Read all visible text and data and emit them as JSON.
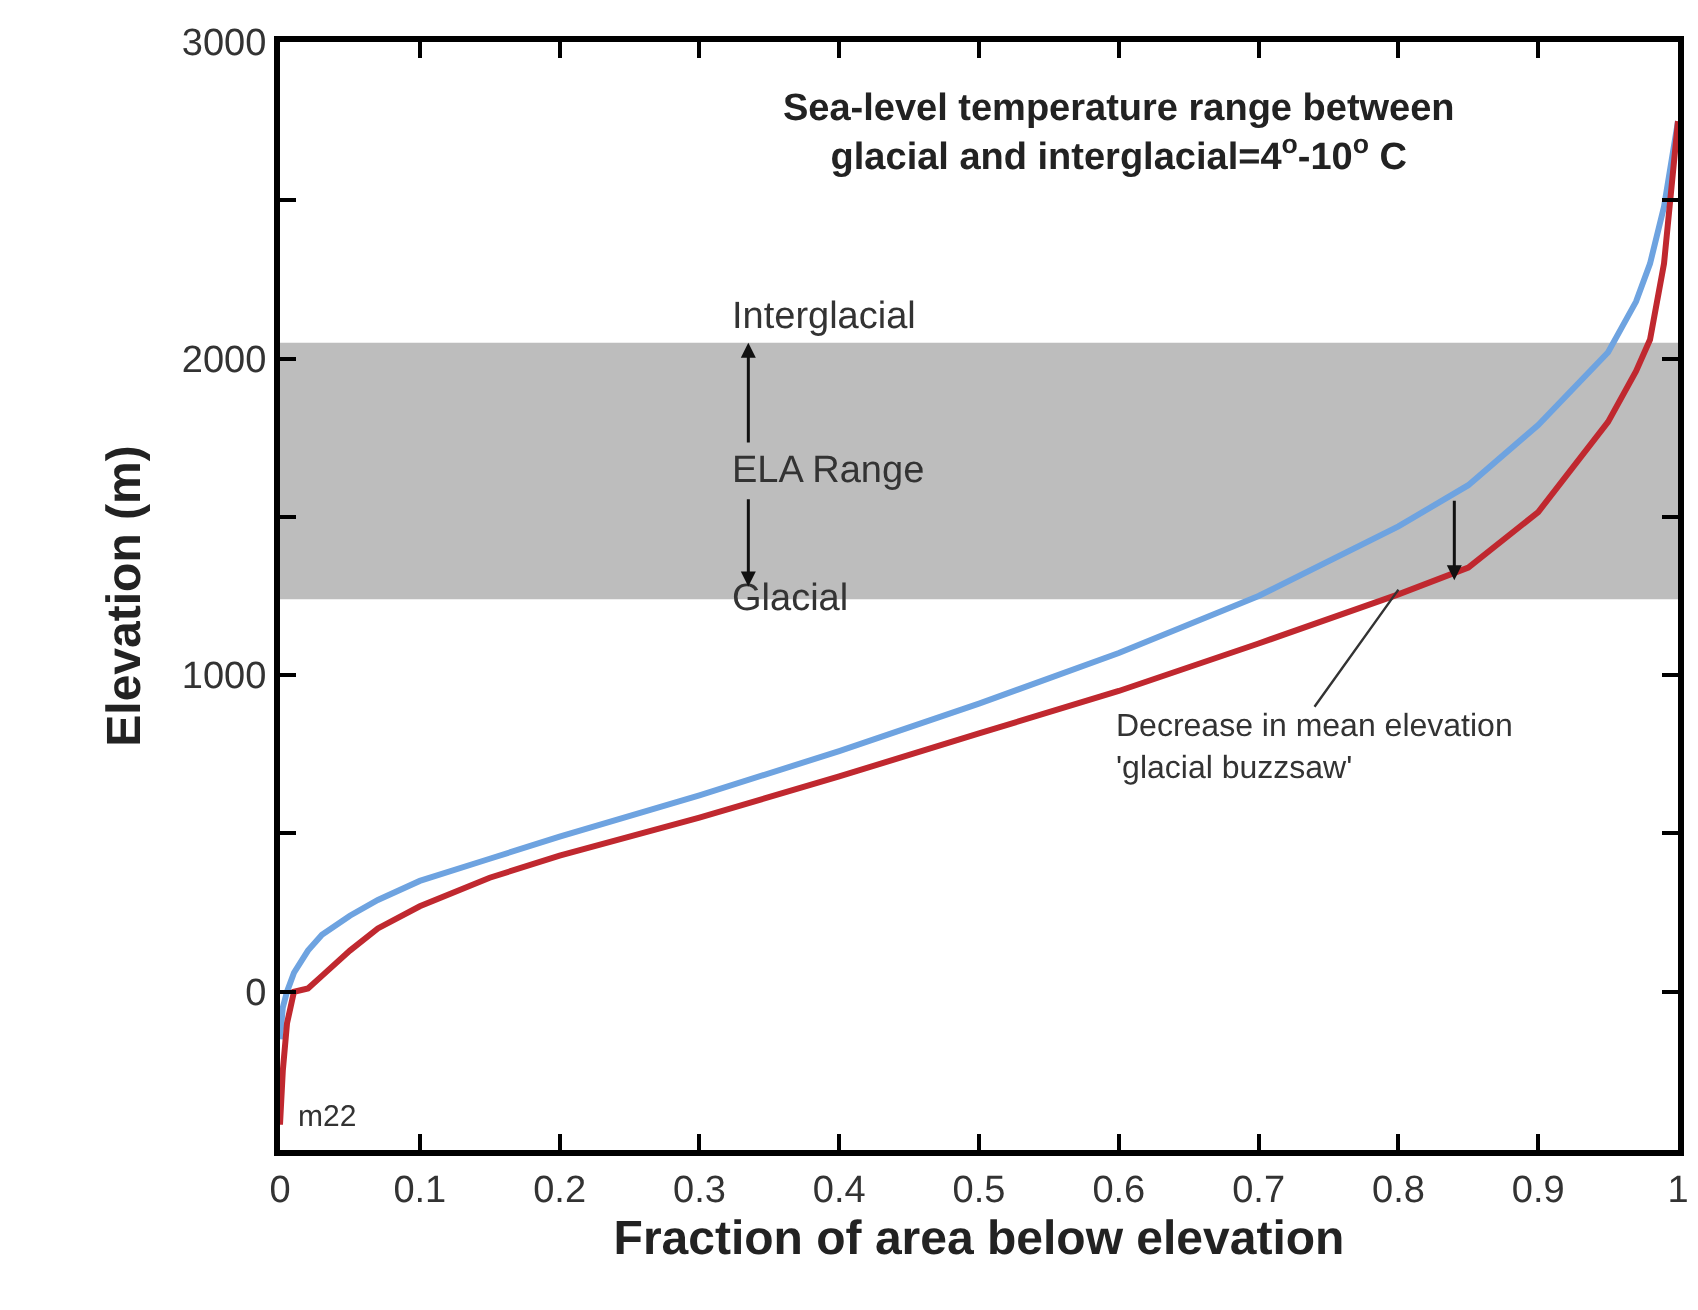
{
  "chart_data": {
    "type": "line",
    "title": "Sea-level temperature range between\nglacial and interglacial=4$^{o}$-10$^{o}$ C",
    "xlabel": "Fraction of area below elevation",
    "ylabel": "Elevation (m)",
    "series": [
      {
        "color": "#6ea3e0",
        "x": [
          0,
          0.002,
          0.005,
          0.01,
          0.02,
          0.03,
          0.05,
          0.07,
          0.1,
          0.15,
          0.2,
          0.3,
          0.4,
          0.5,
          0.6,
          0.7,
          0.8,
          0.85,
          0.9,
          0.95,
          0.97,
          0.98,
          0.99,
          1.0
        ],
        "values": [
          -150,
          -50,
          0,
          60,
          130,
          180,
          240,
          290,
          350,
          420,
          490,
          620,
          760,
          910,
          1070,
          1250,
          1470,
          1600,
          1790,
          2020,
          2180,
          2300,
          2480,
          2750
        ]
      },
      {
        "color": "#c0282f",
        "x": [
          0,
          0.002,
          0.005,
          0.01,
          0.02,
          0.03,
          0.05,
          0.07,
          0.1,
          0.15,
          0.2,
          0.3,
          0.4,
          0.5,
          0.6,
          0.7,
          0.8,
          0.85,
          0.9,
          0.95,
          0.97,
          0.98,
          0.99,
          1.0
        ],
        "values": [
          -420,
          -250,
          -100,
          0,
          10,
          50,
          130,
          200,
          270,
          360,
          430,
          550,
          680,
          816,
          950,
          1100,
          1255,
          1340,
          1515,
          1800,
          1960,
          2060,
          2300,
          2750
        ]
      }
    ],
    "xlim": [
      0,
      1
    ],
    "ylim": [
      -500,
      3000
    ],
    "xticks": [
      0,
      0.1,
      0.2,
      0.3,
      0.4,
      0.5,
      0.6,
      0.7,
      0.8,
      0.9,
      1
    ],
    "yticks": [
      {
        "value": -500,
        "label": null
      },
      0,
      {
        "value": 500,
        "label": null
      },
      1000,
      {
        "value": 1500,
        "label": null
      },
      2000,
      {
        "value": 2500,
        "label": null
      },
      3000
    ],
    "bands": [
      {
        "axis": "y",
        "from": 1240,
        "to": 2050,
        "label": "ELA Range",
        "color": "#bdbdbd"
      }
    ],
    "annotations": [
      "Interglacial",
      "Glacial",
      {
        "text": "Decrease in mean elevation\n'glacial buzzsaw'",
        "x": 0.8,
        "y": 1270
      },
      "m22"
    ],
    "grid": false,
    "line_style": "solid",
    "marker": "none"
  }
}
